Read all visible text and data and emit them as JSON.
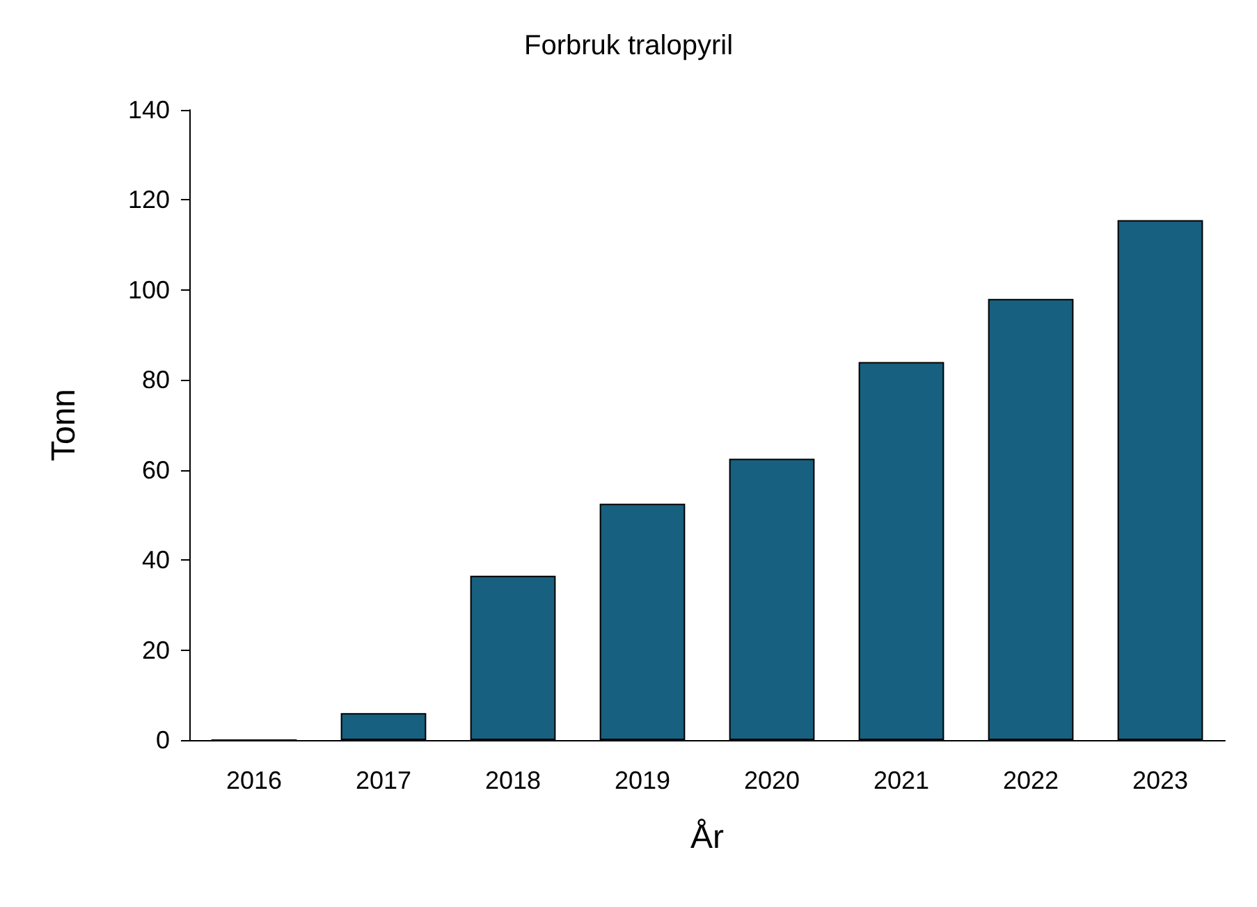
{
  "chart_data": {
    "type": "bar",
    "title": "Forbruk tralopyril",
    "xlabel": "År",
    "ylabel": "Tonn",
    "categories": [
      "2016",
      "2017",
      "2018",
      "2019",
      "2020",
      "2021",
      "2022",
      "2023"
    ],
    "values": [
      0,
      6,
      36.5,
      52.5,
      62.5,
      84,
      98,
      115.5
    ],
    "color": "#17607f",
    "ylim": [
      0,
      140
    ],
    "yticks": [
      0,
      20,
      40,
      60,
      80,
      100,
      120,
      140
    ]
  }
}
